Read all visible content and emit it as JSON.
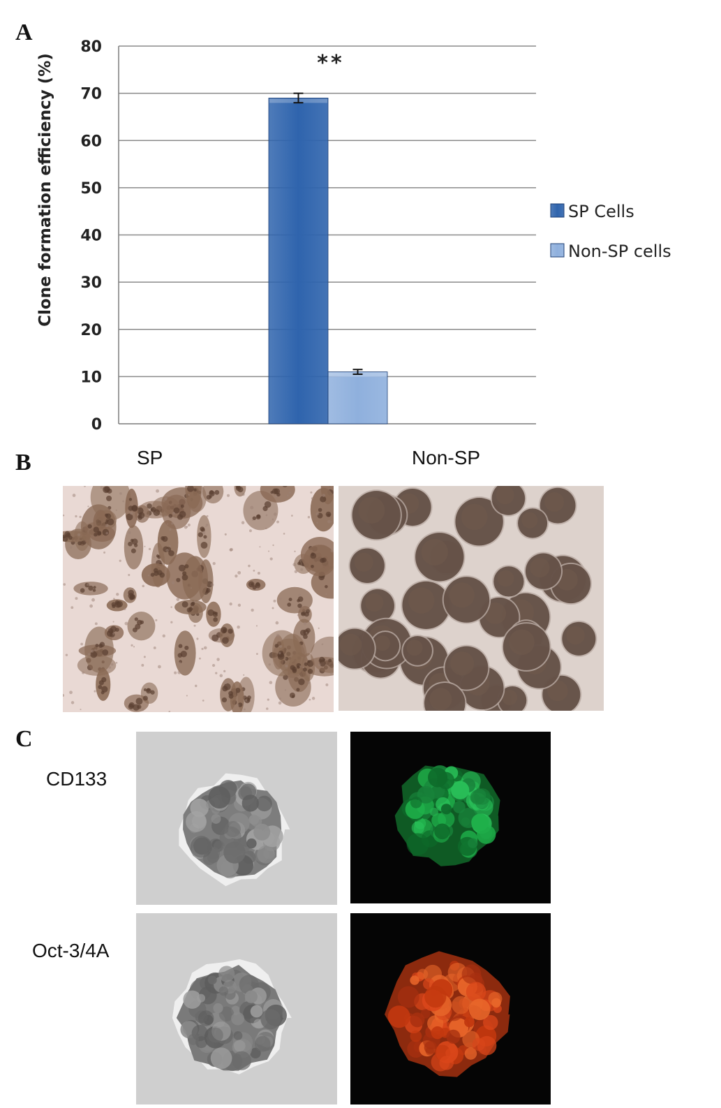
{
  "panels": {
    "a": "A",
    "b": "B",
    "c": "C"
  },
  "chart_data": {
    "type": "bar",
    "categories": [
      ""
    ],
    "series": [
      {
        "name": "SP Cells",
        "values": [
          69.0
        ],
        "error": [
          1.0
        ],
        "color": "#2f64ad"
      },
      {
        "name": "Non-SP cells",
        "values": [
          11.0
        ],
        "error": [
          0.5
        ],
        "color": "#8fb0dd"
      }
    ],
    "ylabel": "Clone formation efficiency (%)",
    "ylim": [
      0,
      80
    ],
    "yticks": [
      0,
      10,
      20,
      30,
      40,
      50,
      60,
      70,
      80
    ],
    "grid": true,
    "legend": "right",
    "annotation": "**"
  },
  "panel_b": {
    "left_label": "SP",
    "right_label": "Non-SP"
  },
  "panel_c": {
    "row1_label": "CD133",
    "row2_label": "Oct-3/4A"
  },
  "colors": {
    "green_stain": "#1fb04a",
    "red_stain": "#d9461a"
  }
}
